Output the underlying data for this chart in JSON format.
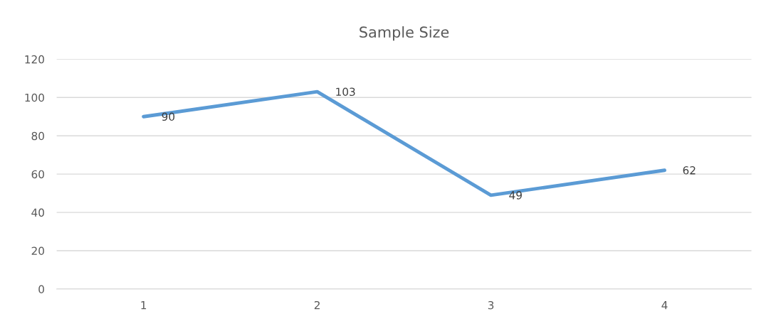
{
  "chart_data": {
    "type": "line",
    "title": "Sample Size",
    "categories": [
      "1",
      "2",
      "3",
      "4"
    ],
    "series": [
      {
        "color": "#5b9bd5",
        "values": [
          90,
          103,
          49,
          62
        ]
      }
    ],
    "ylim": [
      0,
      120
    ],
    "yticks": [
      0,
      20,
      40,
      60,
      80,
      100,
      120
    ],
    "grid": "y",
    "data_labels": true,
    "marker": "none",
    "line_style": "solid"
  }
}
